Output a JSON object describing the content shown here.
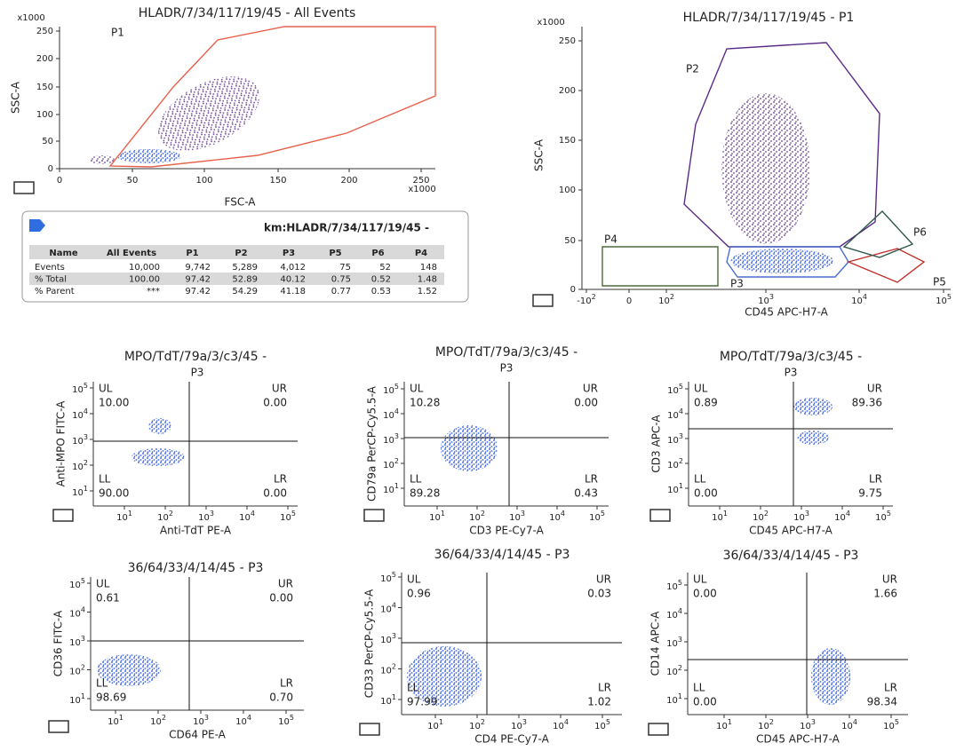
{
  "plots": [
    {
      "title": "HLADR/7/34/117/19/45 - All Events",
      "x_label": "FSC-A",
      "y_label": "SSC-A",
      "scale_label": "x1000",
      "xticks": [
        "0",
        "50",
        "100",
        "150",
        "200",
        "250"
      ],
      "yticks": [
        "0",
        "50",
        "100",
        "150",
        "200",
        "250"
      ],
      "gates": [
        "P1"
      ]
    },
    {
      "title": "HLADR/7/34/117/19/45 - P1",
      "x_label": "CD45 APC-H7-A",
      "y_label": "SSC-A",
      "scale_label": "x1000",
      "xticks": [
        {
          "base": "-10",
          "exp": "2"
        },
        {
          "base": "0"
        },
        {
          "base": "10",
          "exp": "2"
        },
        {
          "base": "10",
          "exp": "3"
        },
        {
          "base": "10",
          "exp": "4"
        },
        {
          "base": "10",
          "exp": "5"
        }
      ],
      "yticks": [
        "0",
        "50",
        "100",
        "150",
        "200",
        "250"
      ],
      "gates": [
        "P2",
        "P3",
        "P4",
        "P5",
        "P6"
      ]
    }
  ],
  "stats": {
    "title": "km:HLADR/7/34/117/19/45 -",
    "columns": [
      "Name",
      "All Events",
      "P1",
      "P2",
      "P3",
      "P5",
      "P6",
      "P4"
    ],
    "rows": [
      [
        "Events",
        "10,000",
        "9,742",
        "5,289",
        "4,012",
        "75",
        "52",
        "148"
      ],
      [
        "% Total",
        "100.00",
        "97.42",
        "52.89",
        "40.12",
        "0.75",
        "0.52",
        "1.48"
      ],
      [
        "% Parent",
        "***",
        "97.42",
        "54.29",
        "41.18",
        "0.77",
        "0.53",
        "1.52"
      ]
    ]
  },
  "quad_plots": [
    {
      "title": "MPO/TdT/79a/3/c3/45 -",
      "gate": "P3",
      "x_label": "Anti-TdT PE-A",
      "y_label": "Anti-MPO FITC-A",
      "xticks": [
        {
          "base": "10",
          "exp": "1"
        },
        {
          "base": "10",
          "exp": "2"
        },
        {
          "base": "10",
          "exp": "3"
        },
        {
          "base": "10",
          "exp": "4"
        },
        {
          "base": "10",
          "exp": "5"
        }
      ],
      "yticks": [
        {
          "base": "10",
          "exp": "1"
        },
        {
          "base": "10",
          "exp": "2"
        },
        {
          "base": "10",
          "exp": "3"
        },
        {
          "base": "10",
          "exp": "4"
        },
        {
          "base": "10",
          "exp": "5"
        }
      ],
      "quadrants": [
        {
          "name": "UL",
          "value": "10.00"
        },
        {
          "name": "UR",
          "value": "0.00"
        },
        {
          "name": "LL",
          "value": "90.00"
        },
        {
          "name": "LR",
          "value": "0.00"
        }
      ]
    },
    {
      "title": "MPO/TdT/79a/3/c3/45 -",
      "gate": "P3",
      "x_label": "CD3 PE-Cy7-A",
      "y_label": "CD79a PerCP-Cy5.5-A",
      "xticks": [
        {
          "base": "10",
          "exp": "1"
        },
        {
          "base": "10",
          "exp": "2"
        },
        {
          "base": "10",
          "exp": "3"
        },
        {
          "base": "10",
          "exp": "4"
        },
        {
          "base": "10",
          "exp": "5"
        }
      ],
      "yticks": [
        {
          "base": "10",
          "exp": "1"
        },
        {
          "base": "10",
          "exp": "2"
        },
        {
          "base": "10",
          "exp": "3"
        },
        {
          "base": "10",
          "exp": "4"
        },
        {
          "base": "10",
          "exp": "5"
        }
      ],
      "quadrants": [
        {
          "name": "UL",
          "value": "10.28"
        },
        {
          "name": "UR",
          "value": "0.00"
        },
        {
          "name": "LL",
          "value": "89.28"
        },
        {
          "name": "LR",
          "value": "0.43"
        }
      ]
    },
    {
      "title": "MPO/TdT/79a/3/c3/45 -",
      "gate": "P3",
      "x_label": "CD45 APC-H7-A",
      "y_label": "CD3 APC-A",
      "xticks": [
        {
          "base": "10",
          "exp": "1"
        },
        {
          "base": "10",
          "exp": "2"
        },
        {
          "base": "10",
          "exp": "3"
        },
        {
          "base": "10",
          "exp": "4"
        },
        {
          "base": "10",
          "exp": "5"
        }
      ],
      "yticks": [
        {
          "base": "10",
          "exp": "1"
        },
        {
          "base": "10",
          "exp": "2"
        },
        {
          "base": "10",
          "exp": "3"
        },
        {
          "base": "10",
          "exp": "4"
        },
        {
          "base": "10",
          "exp": "5"
        }
      ],
      "quadrants": [
        {
          "name": "UL",
          "value": "0.89"
        },
        {
          "name": "UR",
          "value": "89.36"
        },
        {
          "name": "LL",
          "value": "0.00"
        },
        {
          "name": "LR",
          "value": "9.75"
        }
      ]
    },
    {
      "title": "36/64/33/4/14/45 - P3",
      "x_label": "CD64 PE-A",
      "y_label": "CD36 FITC-A",
      "xticks": [
        {
          "base": "10",
          "exp": "1"
        },
        {
          "base": "10",
          "exp": "2"
        },
        {
          "base": "10",
          "exp": "3"
        },
        {
          "base": "10",
          "exp": "4"
        },
        {
          "base": "10",
          "exp": "5"
        }
      ],
      "yticks": [
        {
          "base": "10",
          "exp": "1"
        },
        {
          "base": "10",
          "exp": "2"
        },
        {
          "base": "10",
          "exp": "3"
        },
        {
          "base": "10",
          "exp": "4"
        },
        {
          "base": "10",
          "exp": "5"
        }
      ],
      "quadrants": [
        {
          "name": "UL",
          "value": "0.61"
        },
        {
          "name": "UR",
          "value": "0.00"
        },
        {
          "name": "LL",
          "value": "98.69"
        },
        {
          "name": "LR",
          "value": "0.70"
        }
      ]
    },
    {
      "title": "36/64/33/4/14/45 - P3",
      "x_label": "CD4 PE-Cy7-A",
      "y_label": "CD33 PerCP-Cy5.5-A",
      "xticks": [
        {
          "base": "10",
          "exp": "1"
        },
        {
          "base": "10",
          "exp": "2"
        },
        {
          "base": "10",
          "exp": "3"
        },
        {
          "base": "10",
          "exp": "4"
        },
        {
          "base": "10",
          "exp": "5"
        }
      ],
      "yticks": [
        {
          "base": "10",
          "exp": "1"
        },
        {
          "base": "10",
          "exp": "2"
        },
        {
          "base": "10",
          "exp": "3"
        },
        {
          "base": "10",
          "exp": "4"
        },
        {
          "base": "10",
          "exp": "5"
        }
      ],
      "quadrants": [
        {
          "name": "UL",
          "value": "0.96"
        },
        {
          "name": "UR",
          "value": "0.03"
        },
        {
          "name": "LL",
          "value": "97.99"
        },
        {
          "name": "LR",
          "value": "1.02"
        }
      ]
    },
    {
      "title": "36/64/33/4/14/45 - P3",
      "x_label": "CD45 APC-H7-A",
      "y_label": "CD14 APC-A",
      "xticks": [
        {
          "base": "10",
          "exp": "1"
        },
        {
          "base": "10",
          "exp": "2"
        },
        {
          "base": "10",
          "exp": "3"
        },
        {
          "base": "10",
          "exp": "4"
        },
        {
          "base": "10",
          "exp": "5"
        }
      ],
      "yticks": [
        {
          "base": "10",
          "exp": "1"
        },
        {
          "base": "10",
          "exp": "2"
        },
        {
          "base": "10",
          "exp": "3"
        },
        {
          "base": "10",
          "exp": "4"
        },
        {
          "base": "10",
          "exp": "5"
        }
      ],
      "quadrants": [
        {
          "name": "UL",
          "value": "0.00"
        },
        {
          "name": "UR",
          "value": "1.66"
        },
        {
          "name": "LL",
          "value": "0.00"
        },
        {
          "name": "LR",
          "value": "98.34"
        }
      ]
    }
  ]
}
